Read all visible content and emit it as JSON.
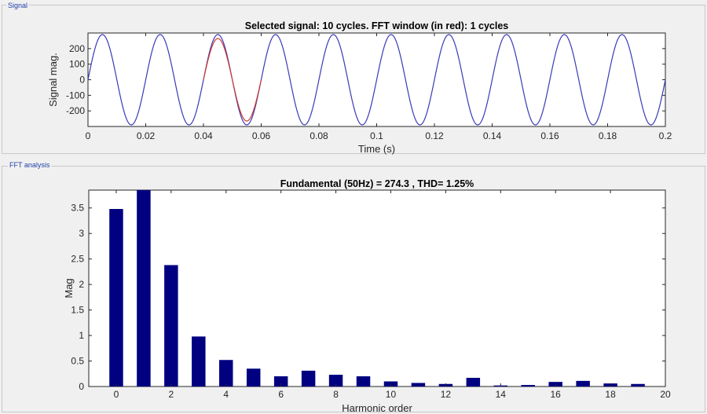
{
  "panels": {
    "signal_label": "Signal",
    "fft_label": "FFT analysis"
  },
  "colors": {
    "signal": "#3a3ab8",
    "fft_window": "#d03a2e",
    "bar": "#000080",
    "panel_title": "#1f3fa8"
  },
  "chart_data": [
    {
      "type": "line",
      "title": "Selected signal: 10 cycles. FFT window (in red): 1 cycles",
      "xlabel": "Time (s)",
      "ylabel": "Signal mag.",
      "xlim": [
        0,
        0.2
      ],
      "ylim": [
        -300,
        300
      ],
      "xticks": [
        0,
        0.02,
        0.04,
        0.06,
        0.08,
        0.1,
        0.12,
        0.14,
        0.16,
        0.18,
        0.2
      ],
      "xtick_labels": [
        "0",
        "0.02",
        "0.04",
        "0.06",
        "0.08",
        "0.1",
        "0.12",
        "0.14",
        "0.16",
        "0.18",
        "0.2"
      ],
      "yticks": [
        -200,
        -100,
        0,
        100,
        200
      ],
      "ytick_labels": [
        "-200",
        "-100",
        "0",
        "100",
        "200"
      ],
      "series": [
        {
          "amplitude": 290,
          "frequency_hz": 50,
          "x_range": [
            0,
            0.2
          ],
          "color_key": "signal"
        },
        {
          "amplitude": 265,
          "frequency_hz": 50,
          "x_range": [
            0.04,
            0.06
          ],
          "color_key": "fft_window"
        }
      ]
    },
    {
      "type": "bar",
      "title": "Fundamental (50Hz) = 274.3 , THD= 1.25%",
      "xlabel": "Harmonic order",
      "ylabel": "Mag",
      "xlim": [
        -1,
        20
      ],
      "ylim": [
        0,
        3.85
      ],
      "xticks": [
        0,
        2,
        4,
        6,
        8,
        10,
        12,
        14,
        16,
        18,
        20
      ],
      "xtick_labels": [
        "0",
        "2",
        "4",
        "6",
        "8",
        "10",
        "12",
        "14",
        "16",
        "18",
        "20"
      ],
      "yticks": [
        0,
        0.5,
        1,
        1.5,
        2,
        2.5,
        3,
        3.5
      ],
      "ytick_labels": [
        "0",
        "0.5",
        "1",
        "1.5",
        "2",
        "2.5",
        "3",
        "3.5"
      ],
      "categories": [
        0,
        1,
        2,
        3,
        4,
        5,
        6,
        7,
        8,
        9,
        10,
        11,
        12,
        13,
        14,
        15,
        16,
        17,
        18,
        19
      ],
      "values": [
        3.48,
        3.85,
        2.38,
        0.98,
        0.52,
        0.35,
        0.2,
        0.31,
        0.23,
        0.2,
        0.1,
        0.07,
        0.05,
        0.17,
        0.02,
        0.03,
        0.09,
        0.11,
        0.06,
        0.05
      ]
    }
  ]
}
